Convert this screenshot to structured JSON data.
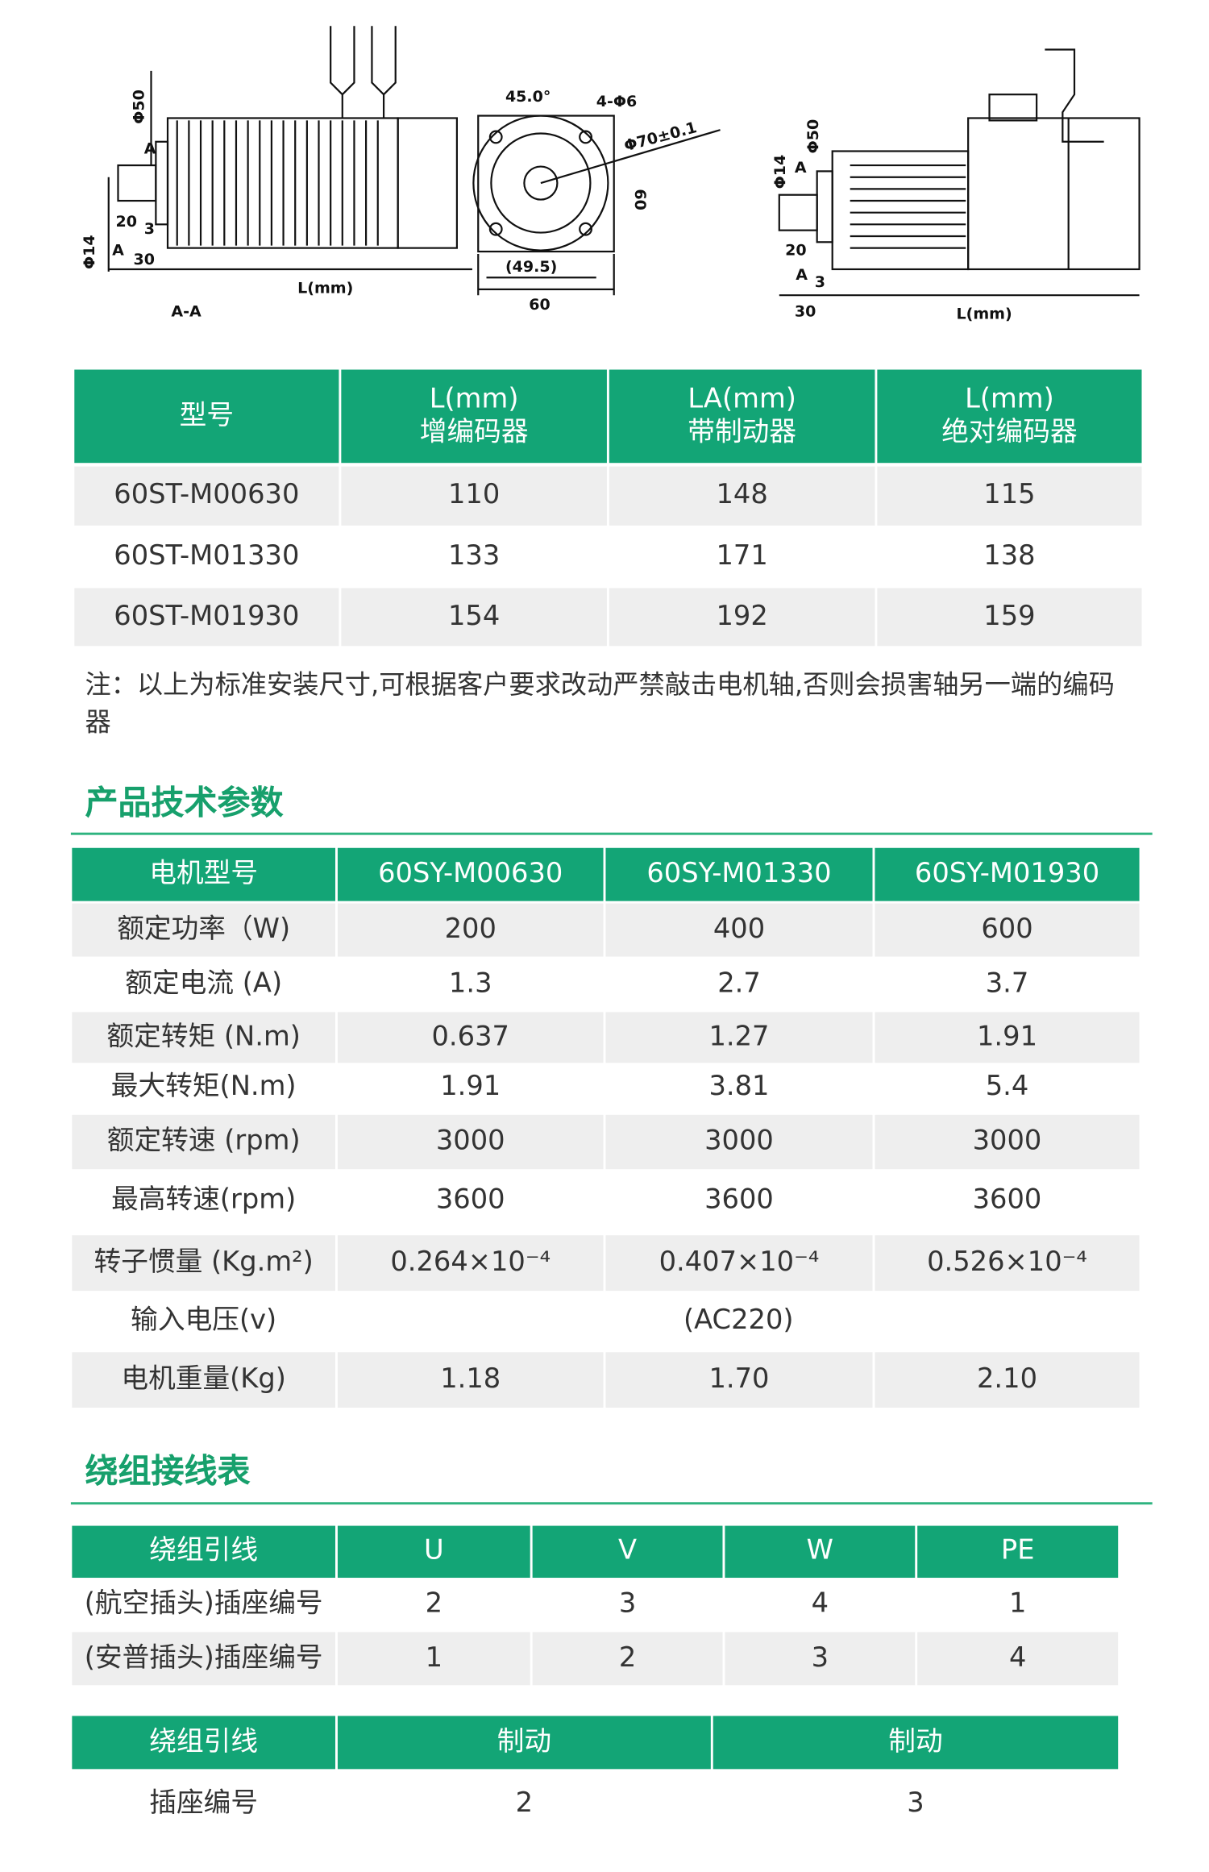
{
  "drawing": {
    "angle": "45.0°",
    "holes": "4-Φ6",
    "pcd": "Φ70±0.1",
    "side": "60",
    "flange_width": "60",
    "inner": "(49.5)",
    "length_left": "L(mm)",
    "section": "A-A",
    "shaft_left": "30",
    "key_left": "20",
    "step_left": "3",
    "a_left": "A",
    "a_left2": "A",
    "shaft_dia_left": "Φ14",
    "spigot_left": "Φ50",
    "shaft_right": "30",
    "key_right": "20",
    "step_right": "3",
    "a_right": "A",
    "a_right2": "A",
    "shaft_dia_right": "Φ14",
    "spigot_right": "Φ50",
    "length_right": "L(mm)"
  },
  "table1": {
    "header": [
      "型号",
      "L(mm)\n增编码器",
      "LA(mm)\n带制动器",
      "L(mm)\n绝对编码器"
    ],
    "rows": [
      [
        "60ST-M00630",
        "110",
        "148",
        "115"
      ],
      [
        "60ST-M01330",
        "133",
        "171",
        "138"
      ],
      [
        "60ST-M01930",
        "154",
        "192",
        "159"
      ]
    ]
  },
  "note": "注：以上为标准安装尺寸,可根据客户要求改动严禁敲击电机轴,否则会损害轴另一端的编码器",
  "section1": {
    "title": "产品技术参数"
  },
  "table2": {
    "header": [
      "电机型号",
      "60SY-M00630",
      "60SY-M01330",
      "60SY-M01930"
    ],
    "rows": [
      [
        "额定功率（W)",
        "200",
        "400",
        "600"
      ],
      [
        "额定电流 (A)",
        "1.3",
        "2.7",
        "3.7"
      ],
      [
        "额定转矩 (N.m)",
        "0.637",
        "1.27",
        "1.91"
      ],
      [
        "最大转矩(N.m)",
        "1.91",
        "3.81",
        "5.4"
      ],
      [
        "额定转速 (rpm)",
        "3000",
        "3000",
        "3000"
      ],
      [
        "最高转速(rpm)",
        "3600",
        "3600",
        "3600"
      ],
      [
        "转子惯量 (Kg.m²)",
        "0.264×10⁻⁴",
        "0.407×10⁻⁴",
        "0.526×10⁻⁴"
      ],
      [
        "输入电压(v)",
        "(AC220)"
      ],
      [
        "电机重量(Kg)",
        "1.18",
        "1.70",
        "2.10"
      ]
    ]
  },
  "section2": {
    "title": "绕组接线表"
  },
  "table3": {
    "header": [
      "绕组引线",
      "U",
      "V",
      "W",
      "PE"
    ],
    "rows": [
      [
        "(航空插头)插座编号",
        "2",
        "3",
        "4",
        "1"
      ],
      [
        "(安普插头)插座编号",
        "1",
        "2",
        "3",
        "4"
      ]
    ]
  },
  "table4": {
    "header": [
      "绕组引线",
      "制动",
      "制动"
    ],
    "rows": [
      [
        "插座编号",
        "2",
        "3"
      ]
    ]
  }
}
